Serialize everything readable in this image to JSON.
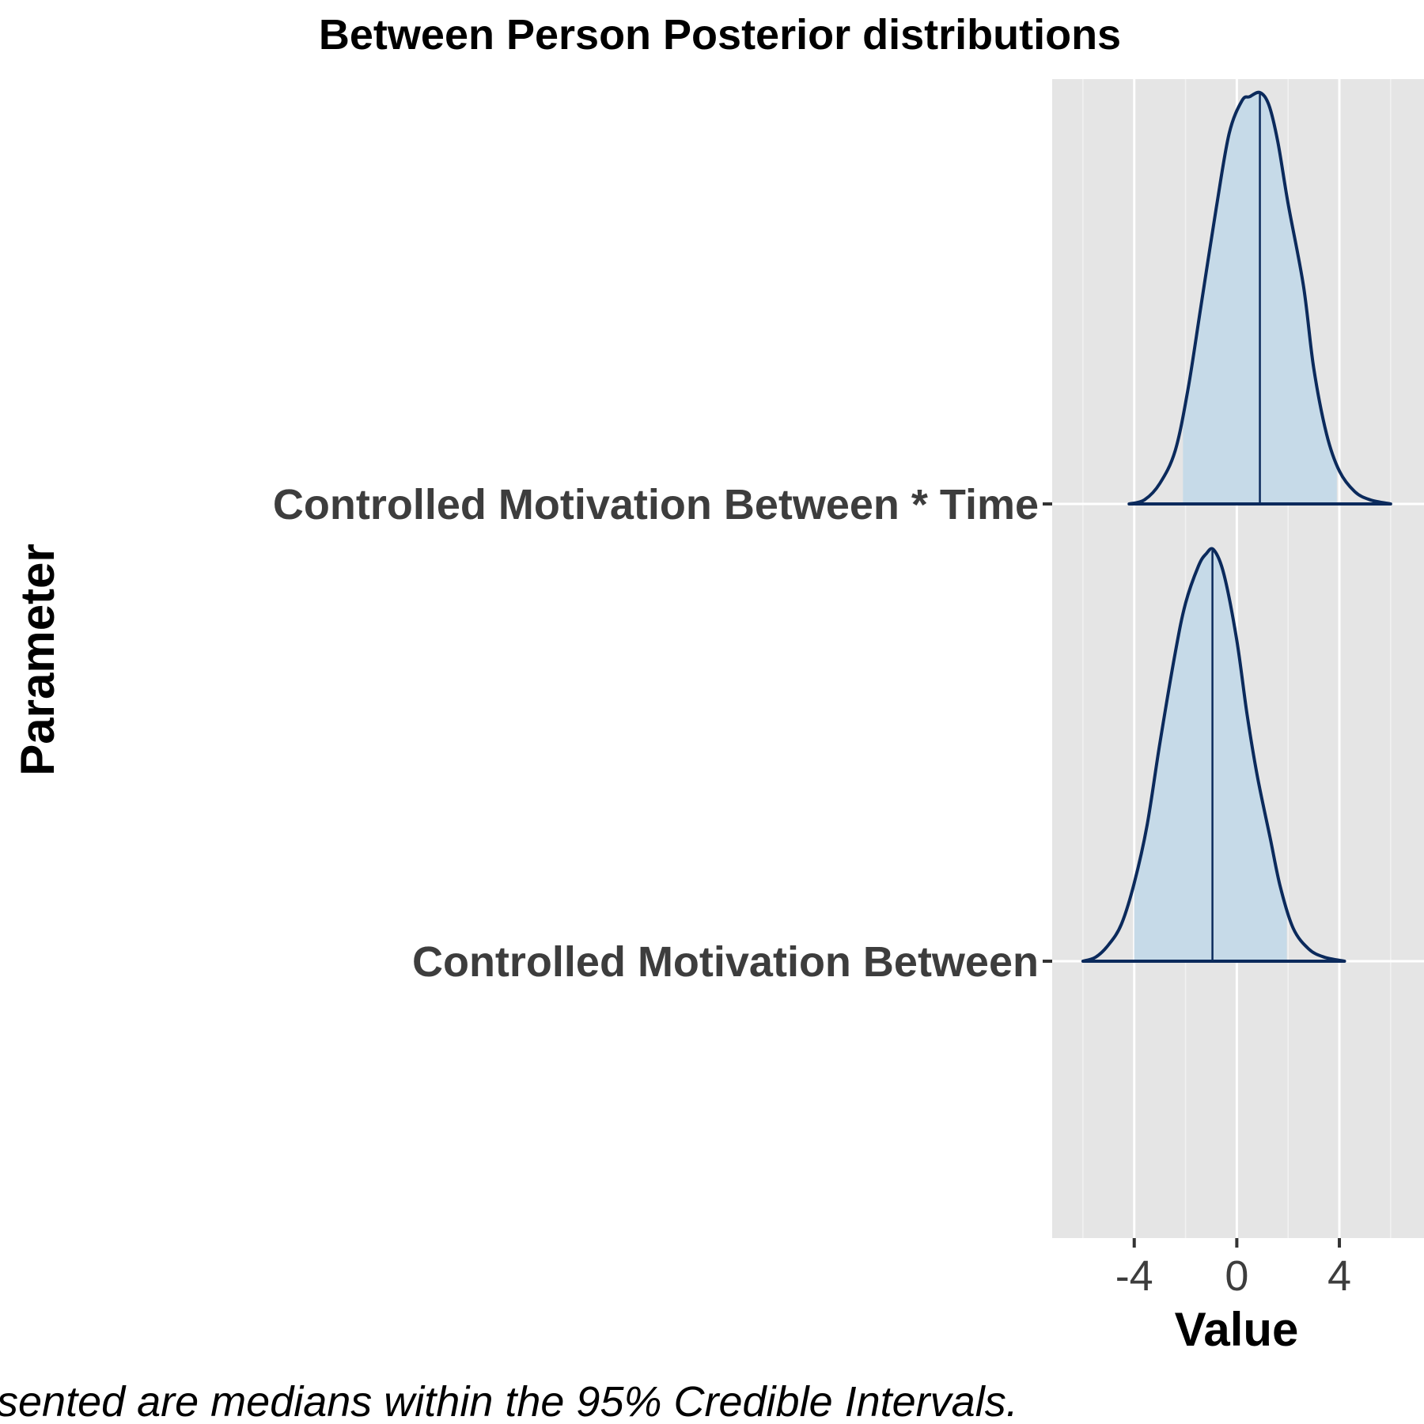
{
  "chart_data": {
    "type": "ridgeline",
    "title": "Between Person Posterior distributions",
    "xlabel": "Value",
    "ylabel": "Parameter",
    "caption": "sented are medians within the 95% Credible Intervals.",
    "xlim": [
      -7.2,
      7.3
    ],
    "xticks": [
      {
        "value": -4,
        "label": "-4"
      },
      {
        "value": 0,
        "label": "0"
      },
      {
        "value": 4,
        "label": "4"
      }
    ],
    "grid": true,
    "colors": {
      "panel": "#e5e5e5",
      "grid": "#ffffff",
      "fill": "#c6dae8",
      "line": "#0b2a5c",
      "text": "#3d3d3d"
    },
    "series": [
      {
        "name": "Controlled Motivation Between * Time",
        "median": 0.9,
        "ci95": [
          -2.1,
          3.9
        ],
        "x": [
          -4.2,
          -3.6,
          -3.0,
          -2.4,
          -1.9,
          -1.4,
          -0.8,
          -0.3,
          0.2,
          0.5,
          0.9,
          1.25,
          1.6,
          2.0,
          2.6,
          3.0,
          3.5,
          4.0,
          4.6,
          5.2,
          6.0
        ],
        "density": [
          0.0,
          0.01,
          0.05,
          0.13,
          0.28,
          0.48,
          0.72,
          0.9,
          0.98,
          0.99,
          1.0,
          0.97,
          0.88,
          0.73,
          0.53,
          0.33,
          0.17,
          0.08,
          0.03,
          0.01,
          0.0
        ]
      },
      {
        "name": "Controlled Motivation Between",
        "median": -0.95,
        "ci95": [
          -4.0,
          1.95
        ],
        "x": [
          -6.0,
          -5.5,
          -5.0,
          -4.5,
          -4.0,
          -3.5,
          -3.0,
          -2.4,
          -2.0,
          -1.5,
          -1.2,
          -0.9,
          -0.5,
          0.0,
          0.4,
          0.8,
          1.3,
          1.7,
          2.2,
          2.8,
          3.4,
          4.2
        ],
        "density": [
          0.0,
          0.01,
          0.04,
          0.09,
          0.19,
          0.33,
          0.53,
          0.75,
          0.87,
          0.96,
          0.99,
          1.0,
          0.94,
          0.78,
          0.6,
          0.45,
          0.3,
          0.18,
          0.08,
          0.03,
          0.01,
          0.0
        ]
      }
    ]
  }
}
